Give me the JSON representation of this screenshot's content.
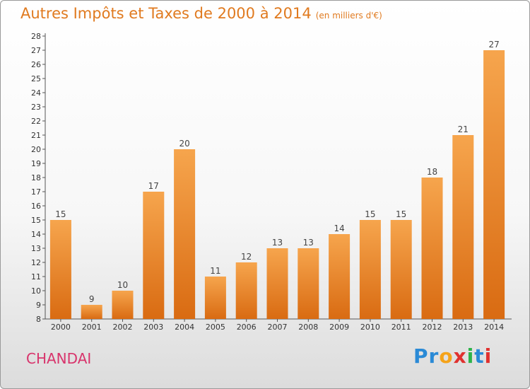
{
  "header": {
    "title": "Autres Impôts et Taxes de 2000 à 2014",
    "unit": "(en milliers d'€)"
  },
  "footer": {
    "commune": "CHANDAI",
    "logo": {
      "letters": [
        "P",
        "r",
        "o",
        "x",
        "i",
        "t",
        "i"
      ],
      "colors": [
        "#2a8ad6",
        "#2a8ad6",
        "#f5a31a",
        "#e0312f",
        "#2db34a",
        "#2a8ad6",
        "#e0312f"
      ]
    }
  },
  "colors": {
    "bar_light": "#f6a54d",
    "bar_dark": "#d96b12",
    "title": "#e07a1f",
    "commune": "#d8346c"
  },
  "chart_data": {
    "type": "bar",
    "title": "Autres Impôts et Taxes de 2000 à 2014",
    "subtitle": "(en milliers d'€)",
    "xlabel": "",
    "ylabel": "",
    "categories": [
      "2000",
      "2001",
      "2002",
      "2003",
      "2004",
      "2005",
      "2006",
      "2007",
      "2008",
      "2009",
      "2010",
      "2011",
      "2012",
      "2013",
      "2014"
    ],
    "values": [
      15,
      9,
      10,
      17,
      20,
      11,
      12,
      13,
      13,
      14,
      15,
      15,
      18,
      21,
      27
    ],
    "ylim": [
      8,
      28
    ],
    "yticks": [
      8,
      9,
      10,
      11,
      12,
      13,
      14,
      15,
      16,
      17,
      18,
      19,
      20,
      21,
      22,
      23,
      24,
      25,
      26,
      27,
      28
    ],
    "grid": false,
    "legend": "none"
  }
}
